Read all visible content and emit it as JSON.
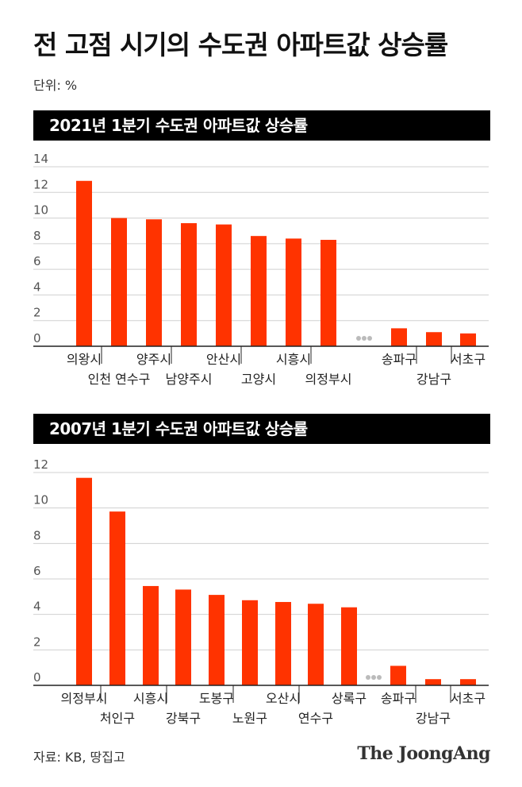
{
  "title": "전 고점 시기의 수도권 아파트값 상승률",
  "unit_label": "단위: %",
  "source": "자료:  KB, 땅집고",
  "logo": "The JoongAng",
  "colors": {
    "bar": "#ff3300",
    "grid": "#d0d0d0",
    "axis": "#222222",
    "ellipsis": "#bbbbbb"
  },
  "chart_data": [
    {
      "type": "bar",
      "title": "2021년 1분기 수도권 아파트값 상승률",
      "categories": [
        "의왕시",
        "인천 연수구",
        "양주시",
        "남양주시",
        "안산시",
        "고양시",
        "시흥시",
        "의정부시",
        "송파구",
        "강남구",
        "서초구"
      ],
      "values": [
        12.9,
        10.0,
        9.9,
        9.6,
        9.5,
        8.6,
        8.4,
        8.3,
        1.4,
        1.1,
        1.0
      ],
      "yticks": [
        "0",
        "2",
        "4",
        "6",
        "8",
        "10",
        "12",
        "14"
      ],
      "ylim": [
        0,
        14
      ],
      "grid": true
    },
    {
      "type": "bar",
      "title": "2007년 1분기 수도권 아파트값 상승률",
      "categories": [
        "의정부시",
        "처인구",
        "시흥시",
        "강북구",
        "도봉구",
        "노원구",
        "오산시",
        "연수구",
        "상록구",
        "송파구",
        "강남구",
        "서초구"
      ],
      "values": [
        11.7,
        9.8,
        5.6,
        5.4,
        5.1,
        4.8,
        4.7,
        4.6,
        4.4,
        1.1,
        0.35,
        0.35
      ],
      "yticks": [
        "0",
        "2",
        "4",
        "6",
        "8",
        "10",
        "12"
      ],
      "ylim": [
        0,
        12
      ],
      "grid": true
    }
  ]
}
